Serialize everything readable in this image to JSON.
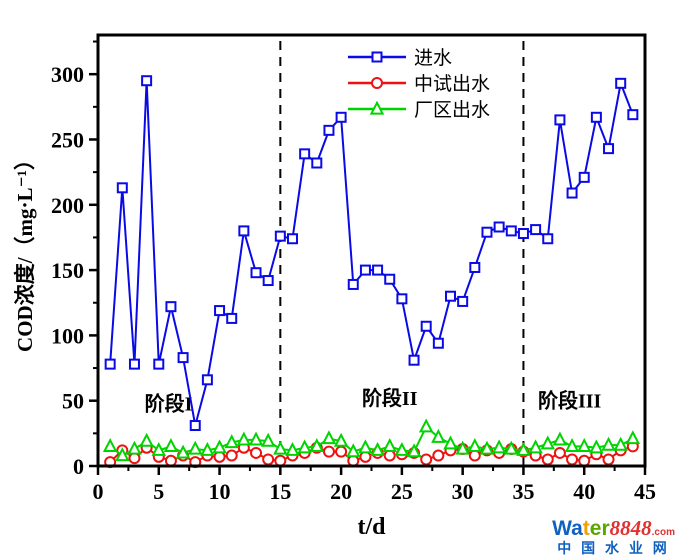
{
  "chart_data": {
    "type": "line",
    "title": "",
    "xlabel": "t/d",
    "ylabel": "COD浓度/（mg·L⁻¹）",
    "xlim": [
      0,
      45
    ],
    "ylim": [
      0,
      330
    ],
    "x_ticks": [
      0,
      5,
      10,
      15,
      20,
      25,
      30,
      35,
      40,
      45
    ],
    "y_ticks": [
      0,
      50,
      100,
      150,
      200,
      250,
      300
    ],
    "x_minor_ticks": [
      2.5,
      7.5,
      12.5,
      17.5,
      22.5,
      27.5,
      32.5,
      37.5,
      42.5
    ],
    "y_minor_ticks": [
      25,
      75,
      125,
      175,
      225,
      275,
      325
    ],
    "grid": false,
    "legend_position": "top-center-inside",
    "x": [
      1,
      2,
      3,
      4,
      5,
      6,
      7,
      8,
      9,
      10,
      11,
      12,
      13,
      14,
      15,
      16,
      17,
      18,
      19,
      20,
      21,
      22,
      23,
      24,
      25,
      26,
      27,
      28,
      29,
      30,
      31,
      32,
      33,
      34,
      35,
      36,
      37,
      38,
      39,
      40,
      41,
      42,
      43,
      44
    ],
    "series": [
      {
        "id": "influent",
        "name": "进水",
        "color": "#0a0ae6",
        "marker": "square",
        "values": [
          78,
          213,
          78,
          295,
          78,
          122,
          83,
          31,
          66,
          119,
          113,
          180,
          148,
          142,
          176,
          174,
          239,
          232,
          257,
          267,
          139,
          150,
          150,
          143,
          128,
          81,
          107,
          94,
          130,
          126,
          152,
          179,
          183,
          180,
          178,
          181,
          174,
          265,
          209,
          221,
          267,
          243,
          293,
          269
        ]
      },
      {
        "id": "pilot-effluent",
        "name": "中试出水",
        "color": "#ee1111",
        "marker": "circle",
        "values": [
          3,
          12,
          6,
          14,
          7,
          4,
          8,
          3,
          8,
          7,
          8,
          14,
          10,
          5,
          4,
          8,
          10,
          14,
          11,
          11,
          4,
          7,
          10,
          8,
          9,
          10,
          5,
          8,
          12,
          13,
          8,
          12,
          10,
          13,
          11,
          8,
          5,
          10,
          5,
          4,
          9,
          5,
          12,
          15
        ]
      },
      {
        "id": "plant-effluent",
        "name": "厂区出水",
        "color": "#00d400",
        "marker": "triangle",
        "values": [
          15,
          8,
          13,
          19,
          12,
          15,
          10,
          13,
          12,
          14,
          18,
          20,
          20,
          19,
          13,
          12,
          14,
          15,
          21,
          19,
          11,
          14,
          12,
          15,
          12,
          11,
          30,
          22,
          17,
          13,
          15,
          13,
          14,
          13,
          12,
          14,
          17,
          20,
          15,
          15,
          14,
          16,
          16,
          21
        ]
      }
    ],
    "phase_lines": [
      15,
      35
    ],
    "phase_labels": [
      {
        "text": "阶段I",
        "x": 5.8,
        "y": 48
      },
      {
        "text": "阶段II",
        "x": 24.0,
        "y": 52
      },
      {
        "text": "阶段III",
        "x": 38.8,
        "y": 50
      }
    ]
  },
  "watermark": {
    "line1_parts": [
      {
        "text": "Wa",
        "color": "#1060c0",
        "style": "normal"
      },
      {
        "text": "t",
        "color": "#f0a000",
        "style": "normal"
      },
      {
        "text": "er",
        "color": "#58a800",
        "style": "normal"
      },
      {
        "text": "8848",
        "color": "#e03030",
        "style": "italic"
      },
      {
        "text": ".com",
        "color": "#e03030",
        "style": "small"
      }
    ],
    "line2": "中 国 水 业 网",
    "line2_color": "#1060c0"
  }
}
